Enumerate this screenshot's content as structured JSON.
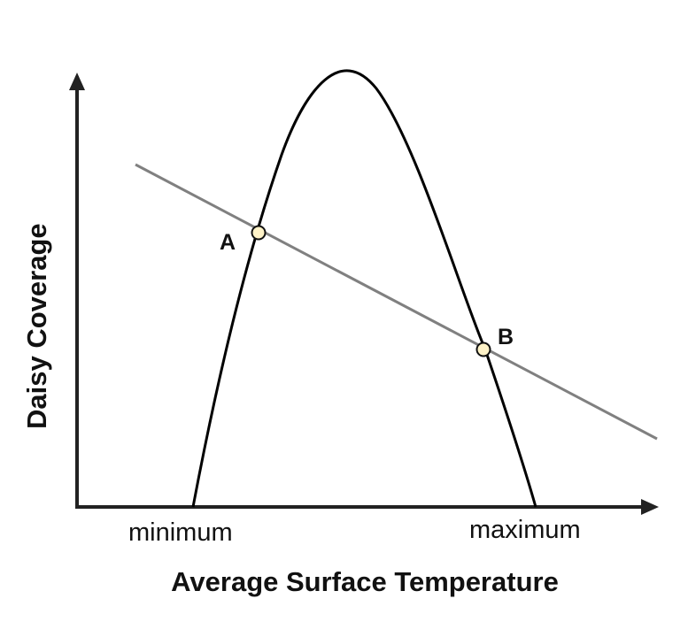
{
  "diagram": {
    "x_axis_title": "Average Surface Temperature",
    "y_axis_title": "Daisy Coverage",
    "x_tick_left": "minimum",
    "x_tick_right": "maximum",
    "point_a_label": "A",
    "point_b_label": "B",
    "colors": {
      "axes": "#222222",
      "parabola": "#000000",
      "line": "#808080",
      "point_fill": "#fff3c8",
      "point_stroke": "#111111",
      "text": "#111111"
    }
  }
}
